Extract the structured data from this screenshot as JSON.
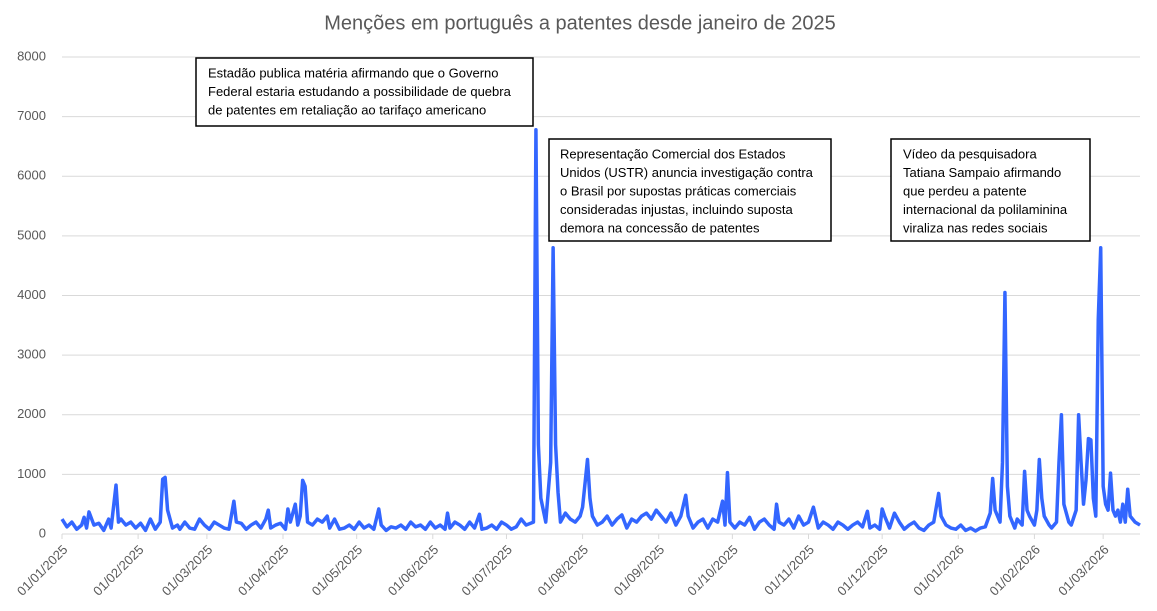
{
  "chart_data": {
    "type": "line",
    "title": "Menções em português a patentes desde janeiro de 2025",
    "color": "#3366ff",
    "grid": true,
    "ylim": [
      0,
      8000
    ],
    "yticks": [
      0,
      1000,
      2000,
      3000,
      4000,
      5000,
      6000,
      7000,
      8000
    ],
    "xlim": [
      "2025-01-01",
      "2026-03-16"
    ],
    "xticks": [
      {
        "value": "2025-01-01",
        "label": "01/01/2025"
      },
      {
        "value": "2025-02-01",
        "label": "01/02/2025"
      },
      {
        "value": "2025-03-01",
        "label": "01/03/2025"
      },
      {
        "value": "2025-04-01",
        "label": "01/04/2025"
      },
      {
        "value": "2025-05-01",
        "label": "01/05/2025"
      },
      {
        "value": "2025-06-01",
        "label": "01/06/2025"
      },
      {
        "value": "2025-07-01",
        "label": "01/07/2025"
      },
      {
        "value": "2025-08-01",
        "label": "01/08/2025"
      },
      {
        "value": "2025-09-01",
        "label": "01/09/2025"
      },
      {
        "value": "2025-10-01",
        "label": "01/10/2025"
      },
      {
        "value": "2025-11-01",
        "label": "01/11/2025"
      },
      {
        "value": "2025-12-01",
        "label": "01/12/2025"
      },
      {
        "value": "2026-01-01",
        "label": "01/01/2026"
      },
      {
        "value": "2026-02-01",
        "label": "01/02/2026"
      },
      {
        "value": "2026-03-01",
        "label": "01/03/2026"
      }
    ],
    "x": [
      "2025-01-01",
      "2025-01-03",
      "2025-01-05",
      "2025-01-07",
      "2025-01-09",
      "2025-01-10",
      "2025-01-11",
      "2025-01-12",
      "2025-01-14",
      "2025-01-16",
      "2025-01-18",
      "2025-01-20",
      "2025-01-21",
      "2025-01-23",
      "2025-01-24",
      "2025-01-25",
      "2025-01-27",
      "2025-01-29",
      "2025-01-31",
      "2025-02-02",
      "2025-02-04",
      "2025-02-06",
      "2025-02-08",
      "2025-02-10",
      "2025-02-11",
      "2025-02-12",
      "2025-02-13",
      "2025-02-15",
      "2025-02-17",
      "2025-02-18",
      "2025-02-20",
      "2025-02-22",
      "2025-02-24",
      "2025-02-26",
      "2025-02-28",
      "2025-03-02",
      "2025-03-04",
      "2025-03-06",
      "2025-03-08",
      "2025-03-10",
      "2025-03-12",
      "2025-03-13",
      "2025-03-15",
      "2025-03-17",
      "2025-03-19",
      "2025-03-21",
      "2025-03-23",
      "2025-03-25",
      "2025-03-26",
      "2025-03-27",
      "2025-03-29",
      "2025-03-31",
      "2025-04-02",
      "2025-04-03",
      "2025-04-04",
      "2025-04-06",
      "2025-04-07",
      "2025-04-08",
      "2025-04-09",
      "2025-04-10",
      "2025-04-11",
      "2025-04-13",
      "2025-04-15",
      "2025-04-17",
      "2025-04-19",
      "2025-04-20",
      "2025-04-22",
      "2025-04-24",
      "2025-04-26",
      "2025-04-28",
      "2025-04-30",
      "2025-05-02",
      "2025-05-04",
      "2025-05-06",
      "2025-05-08",
      "2025-05-10",
      "2025-05-11",
      "2025-05-13",
      "2025-05-15",
      "2025-05-17",
      "2025-05-19",
      "2025-05-21",
      "2025-05-23",
      "2025-05-25",
      "2025-05-27",
      "2025-05-29",
      "2025-05-31",
      "2025-06-02",
      "2025-06-04",
      "2025-06-06",
      "2025-06-07",
      "2025-06-08",
      "2025-06-10",
      "2025-06-12",
      "2025-06-14",
      "2025-06-16",
      "2025-06-18",
      "2025-06-20",
      "2025-06-21",
      "2025-06-23",
      "2025-06-25",
      "2025-06-27",
      "2025-06-29",
      "2025-07-01",
      "2025-07-03",
      "2025-07-05",
      "2025-07-07",
      "2025-07-09",
      "2025-07-12",
      "2025-07-13",
      "2025-07-14",
      "2025-07-15",
      "2025-07-17",
      "2025-07-19",
      "2025-07-20",
      "2025-07-21",
      "2025-07-22",
      "2025-07-23",
      "2025-07-25",
      "2025-07-27",
      "2025-07-29",
      "2025-07-31",
      "2025-08-01",
      "2025-08-03",
      "2025-08-04",
      "2025-08-05",
      "2025-08-07",
      "2025-08-09",
      "2025-08-11",
      "2025-08-13",
      "2025-08-15",
      "2025-08-17",
      "2025-08-19",
      "2025-08-21",
      "2025-08-23",
      "2025-08-25",
      "2025-08-27",
      "2025-08-29",
      "2025-08-31",
      "2025-09-02",
      "2025-09-04",
      "2025-09-06",
      "2025-09-08",
      "2025-09-10",
      "2025-09-12",
      "2025-09-13",
      "2025-09-15",
      "2025-09-17",
      "2025-09-19",
      "2025-09-21",
      "2025-09-23",
      "2025-09-25",
      "2025-09-27",
      "2025-09-28",
      "2025-09-29",
      "2025-09-30",
      "2025-10-02",
      "2025-10-04",
      "2025-10-06",
      "2025-10-08",
      "2025-10-10",
      "2025-10-12",
      "2025-10-14",
      "2025-10-16",
      "2025-10-18",
      "2025-10-19",
      "2025-10-20",
      "2025-10-22",
      "2025-10-24",
      "2025-10-26",
      "2025-10-28",
      "2025-10-30",
      "2025-11-01",
      "2025-11-03",
      "2025-11-05",
      "2025-11-07",
      "2025-11-09",
      "2025-11-11",
      "2025-11-13",
      "2025-11-15",
      "2025-11-17",
      "2025-11-19",
      "2025-11-21",
      "2025-11-23",
      "2025-11-25",
      "2025-11-26",
      "2025-11-28",
      "2025-11-30",
      "2025-12-01",
      "2025-12-02",
      "2025-12-04",
      "2025-12-06",
      "2025-12-08",
      "2025-12-10",
      "2025-12-12",
      "2025-12-14",
      "2025-12-16",
      "2025-12-18",
      "2025-12-20",
      "2025-12-22",
      "2025-12-24",
      "2025-12-25",
      "2025-12-27",
      "2025-12-29",
      "2025-12-31",
      "2026-01-02",
      "2026-01-04",
      "2026-01-06",
      "2026-01-08",
      "2026-01-10",
      "2026-01-12",
      "2026-01-14",
      "2026-01-15",
      "2026-01-16",
      "2026-01-18",
      "2026-01-19",
      "2026-01-20",
      "2026-01-21",
      "2026-01-22",
      "2026-01-24",
      "2026-01-25",
      "2026-01-27",
      "2026-01-28",
      "2026-01-29",
      "2026-01-30",
      "2026-02-01",
      "2026-02-02",
      "2026-02-03",
      "2026-02-04",
      "2026-02-05",
      "2026-02-07",
      "2026-02-08",
      "2026-02-10",
      "2026-02-11",
      "2026-02-12",
      "2026-02-13",
      "2026-02-15",
      "2026-02-16",
      "2026-02-18",
      "2026-02-19",
      "2026-02-20",
      "2026-02-21",
      "2026-02-22",
      "2026-02-23",
      "2026-02-24",
      "2026-02-25",
      "2026-02-26",
      "2026-02-27",
      "2026-02-28",
      "2026-03-01",
      "2026-03-02",
      "2026-03-03",
      "2026-03-04",
      "2026-03-05",
      "2026-03-06",
      "2026-03-07",
      "2026-03-08",
      "2026-03-09",
      "2026-03-10",
      "2026-03-11",
      "2026-03-12",
      "2026-03-14",
      "2026-03-16"
    ],
    "values": [
      250,
      120,
      200,
      80,
      150,
      280,
      100,
      370,
      150,
      180,
      60,
      250,
      100,
      820,
      200,
      250,
      150,
      200,
      100,
      180,
      60,
      250,
      80,
      200,
      920,
      950,
      400,
      100,
      150,
      80,
      200,
      100,
      80,
      250,
      150,
      80,
      200,
      150,
      100,
      80,
      550,
      200,
      180,
      80,
      150,
      200,
      100,
      250,
      400,
      100,
      150,
      180,
      80,
      420,
      200,
      500,
      150,
      300,
      900,
      800,
      200,
      150,
      250,
      200,
      300,
      100,
      250,
      80,
      100,
      150,
      80,
      200,
      100,
      150,
      80,
      420,
      150,
      60,
      120,
      100,
      150,
      80,
      200,
      120,
      150,
      80,
      200,
      100,
      150,
      80,
      350,
      100,
      200,
      150,
      80,
      200,
      100,
      330,
      80,
      100,
      150,
      80,
      200,
      150,
      80,
      120,
      250,
      150,
      200,
      6780,
      1500,
      600,
      200,
      1200,
      4800,
      1500,
      700,
      200,
      350,
      250,
      200,
      300,
      450,
      1250,
      600,
      300,
      150,
      200,
      300,
      150,
      250,
      320,
      100,
      250,
      200,
      300,
      350,
      250,
      400,
      300,
      200,
      350,
      150,
      300,
      650,
      300,
      100,
      200,
      250,
      100,
      250,
      200,
      550,
      150,
      1030,
      200,
      100,
      200,
      150,
      280,
      80,
      200,
      250,
      150,
      80,
      500,
      200,
      150,
      250,
      100,
      300,
      150,
      200,
      450,
      100,
      200,
      150,
      80,
      200,
      150,
      80,
      150,
      200,
      120,
      380,
      100,
      150,
      80,
      420,
      300,
      100,
      350,
      200,
      80,
      150,
      200,
      100,
      60,
      150,
      200,
      680,
      300,
      150,
      100,
      80,
      150,
      60,
      100,
      50,
      100,
      120,
      350,
      930,
      400,
      200,
      1200,
      4050,
      800,
      300,
      100,
      250,
      150,
      1050,
      400,
      300,
      150,
      400,
      1250,
      600,
      300,
      150,
      100,
      200,
      1200,
      2000,
      500,
      200,
      150,
      400,
      2000,
      1200,
      500,
      900,
      1600,
      1580,
      600,
      300,
      3600,
      4800,
      800,
      500,
      400,
      1020,
      400,
      300,
      400,
      200,
      500,
      200,
      750,
      300,
      200,
      150
    ],
    "annotations": [
      {
        "lines": [
          "Estadão publica matéria afirmando que o Governo",
          "Federal estaria estudando a possibilidade de quebra",
          "de patentes em retaliação ao tarifaço americano"
        ]
      },
      {
        "lines": [
          "Representação Comercial dos Estados",
          "Unidos (USTR)  anuncia investigação contra",
          "o Brasil por supostas práticas comerciais",
          "consideradas injustas, incluindo suposta",
          "demora na concessão de patentes"
        ]
      },
      {
        "lines": [
          "Vídeo da pesquisadora",
          "Tatiana Sampaio afirmando",
          "que perdeu a patente",
          "internacional da polilaminina",
          "viraliza nas redes sociais"
        ]
      }
    ]
  }
}
